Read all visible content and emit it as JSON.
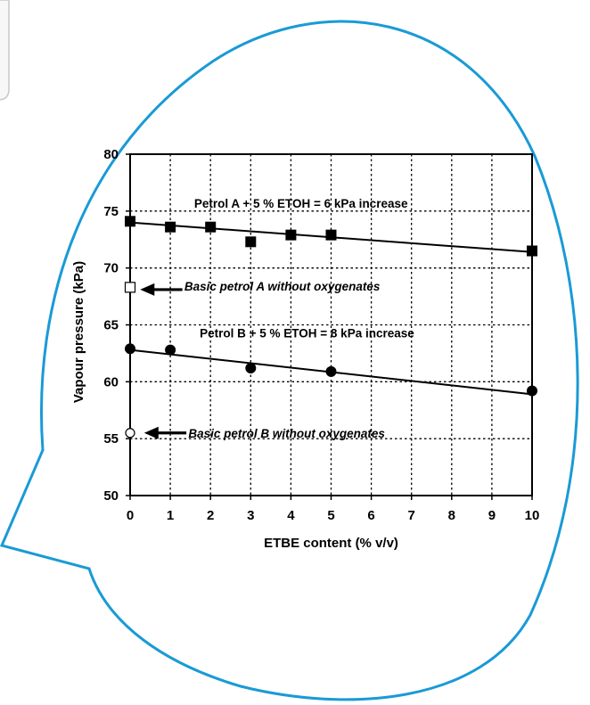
{
  "colors": {
    "bubble_outline": "#1a9ad6",
    "background": "#ffffff",
    "corner_panel_border": "#c8c8c8",
    "marker": "#000000"
  },
  "chart_data": {
    "type": "scatter",
    "title": "",
    "xlabel": "ETBE content (% v/v)",
    "ylabel": "Vapour pressure (kPa)",
    "xlim": [
      0,
      10
    ],
    "ylim": [
      50,
      80
    ],
    "x_ticks": [
      0,
      1,
      2,
      3,
      4,
      5,
      6,
      7,
      8,
      9,
      10
    ],
    "y_ticks": [
      50,
      55,
      60,
      65,
      70,
      75,
      80
    ],
    "grid": true,
    "series": [
      {
        "marker": "filled-square",
        "x": [
          0,
          1,
          2,
          3,
          4,
          5,
          10
        ],
        "y": [
          74.1,
          73.6,
          73.6,
          72.3,
          72.9,
          72.9,
          71.5
        ],
        "trend_line": [
          [
            0,
            74.0
          ],
          [
            10,
            71.4
          ]
        ]
      },
      {
        "marker": "filled-circle",
        "x": [
          0,
          1,
          3,
          5,
          10
        ],
        "y": [
          62.9,
          62.8,
          61.2,
          60.9,
          59.2
        ],
        "trend_line": [
          [
            0,
            62.8
          ],
          [
            10,
            58.9
          ]
        ]
      },
      {
        "marker": "open-square",
        "x": [
          0
        ],
        "y": [
          68.3
        ]
      },
      {
        "marker": "open-circle",
        "x": [
          0
        ],
        "y": [
          55.5
        ]
      }
    ],
    "annotations": [
      {
        "text": "Petrol A + 5 % ETOH = 6 kPa increase",
        "italic": false,
        "x": 4.25,
        "y": 75.3
      },
      {
        "text": "Basic petrol A without oxygenates",
        "italic": true,
        "x": 1.35,
        "y": 68.0,
        "arrow_from": [
          1.3,
          68.1
        ],
        "arrow_to": [
          0.25,
          68.1
        ]
      },
      {
        "text": "Petrol B + 5 % ETOH = 8 kPa increase",
        "italic": false,
        "x": 4.4,
        "y": 63.9
      },
      {
        "text": "Basic petrol B without oxygenates",
        "italic": true,
        "x": 1.45,
        "y": 55.1,
        "arrow_from": [
          1.4,
          55.5
        ],
        "arrow_to": [
          0.35,
          55.5
        ]
      }
    ]
  }
}
